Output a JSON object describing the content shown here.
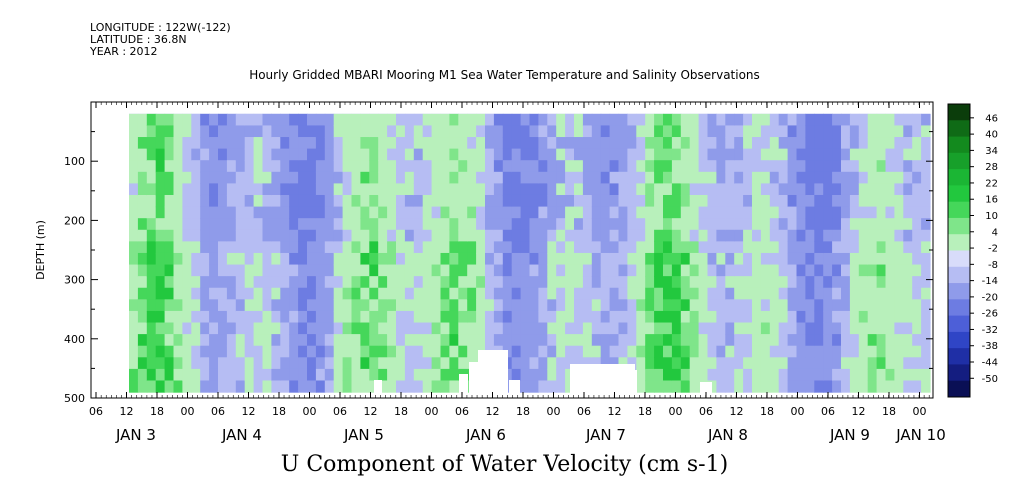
{
  "header": {
    "longitude": "LONGITUDE : 122W(-122)",
    "latitude": "LATITUDE : 36.8N",
    "year": "YEAR : 2012"
  },
  "chart_data": {
    "type": "heatmap",
    "title": "Hourly Gridded MBARI Mooring M1 Sea Water Temperature and Salinity Observations",
    "xlabel": "U Component of Water Velocity (cm s-1)",
    "ylabel": "DEPTH (m)",
    "ylim": [
      500,
      0
    ],
    "y_ticks": [
      100,
      200,
      300,
      400,
      500
    ],
    "x_hour_ticks": [
      "06",
      "12",
      "18",
      "00",
      "06",
      "12",
      "18",
      "00",
      "06",
      "12",
      "18",
      "00",
      "06",
      "12",
      "18",
      "00",
      "06",
      "12",
      "18",
      "00",
      "06",
      "12",
      "18",
      "00",
      "06",
      "12",
      "18",
      "00",
      "06",
      "12",
      "18",
      "00"
    ],
    "x_day_labels": [
      "JAN 3",
      "JAN 4",
      "JAN 5",
      "JAN 6",
      "JAN 7",
      "JAN 8",
      "JAN 9",
      "JAN 10"
    ],
    "colorbar": {
      "levels": [
        46,
        40,
        34,
        28,
        22,
        16,
        10,
        4,
        -2,
        -8,
        -14,
        -20,
        -26,
        -32,
        -38,
        -44,
        -50
      ],
      "colors_top_to_bottom": [
        "#0b3d0b",
        "#0f6b16",
        "#138a1e",
        "#17a02a",
        "#1bb634",
        "#22c83e",
        "#45d75a",
        "#7fe58a",
        "#b8f0bb",
        "#d8dcfa",
        "#b6bdf3",
        "#8f9bea",
        "#6d7ce2",
        "#4d5fd8",
        "#2f45c6",
        "#1f2fa6",
        "#141d80",
        "#0a0f55"
      ]
    }
  }
}
